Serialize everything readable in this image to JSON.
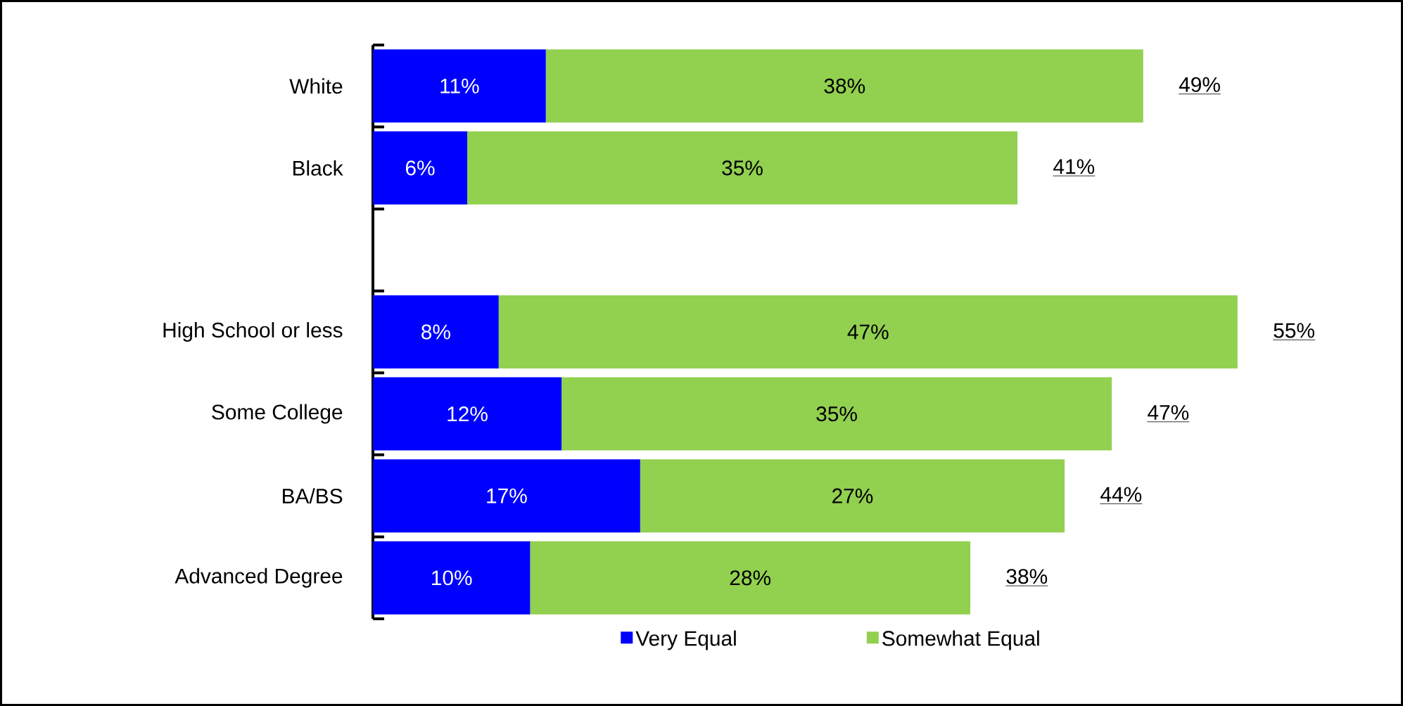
{
  "chart_data": {
    "type": "bar",
    "orientation": "horizontal",
    "stacked": true,
    "legend": "bottom",
    "categories": [
      "White",
      "Black",
      null,
      "High School or less",
      "Some College",
      "BA/BS",
      "Advanced Degree"
    ],
    "series": [
      {
        "name": "Very Equal",
        "color": "#0000ff",
        "values": [
          11,
          6,
          null,
          8,
          12,
          17,
          10
        ],
        "value_labels": [
          "11%",
          "6%",
          null,
          "8%",
          "12%",
          "17%",
          "10%"
        ]
      },
      {
        "name": "Somewhat Equal",
        "color": "#92d050",
        "values": [
          38,
          35,
          null,
          47,
          35,
          27,
          28
        ],
        "value_labels": [
          "38%",
          "35%",
          null,
          "47%",
          "35%",
          "27%",
          "28%"
        ]
      }
    ],
    "totals": [
      "49%",
      "41%",
      null,
      "55%",
      "47%",
      "44%",
      "38%"
    ]
  }
}
